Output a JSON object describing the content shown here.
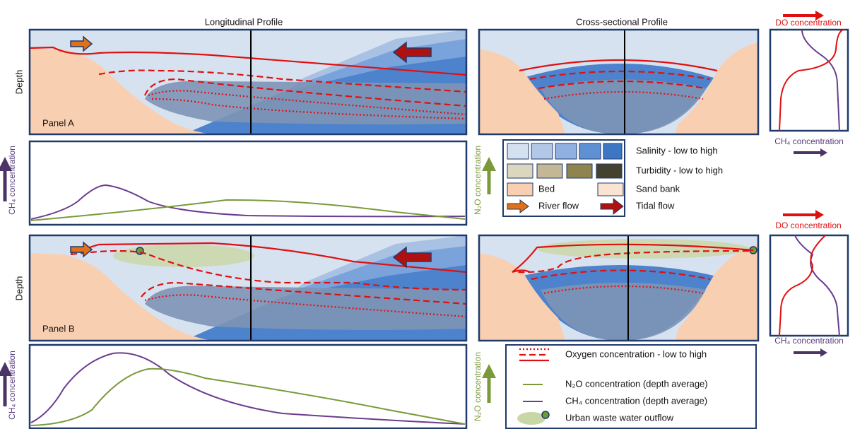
{
  "titles": {
    "longitudinal": "Longitudinal Profile",
    "cross_sectional": "Cross-sectional Profile"
  },
  "panel_a": {
    "label": "Panel A",
    "depth": "Depth",
    "ch4_axis": "CH₄ concentration",
    "n2o_axis": "N₂O concentration",
    "do_axis": "DO concentration",
    "ch4_profile_axis": "CH₄ concentration"
  },
  "panel_b": {
    "label": "Panel B",
    "depth": "Depth",
    "ch4_axis": "CH₄ concentration",
    "n2o_axis": "N₂O concentration",
    "do_axis": "DO concentration",
    "ch4_profile_axis": "CH₄ concentration"
  },
  "legend_top": {
    "salinity": "Salinity - low to high",
    "turbidity": "Turbidity - low to high",
    "bed": "Bed",
    "sand_bank": "Sand bank",
    "river_flow": "River flow",
    "tidal_flow": "Tidal flow"
  },
  "legend_bottom": {
    "oxygen": "Oxygen concentration - low to high",
    "n2o": "N₂O concentration (depth average)",
    "ch4": "CH₄ concentration (depth average)",
    "outflow": "Urban waste water outflow"
  }
}
